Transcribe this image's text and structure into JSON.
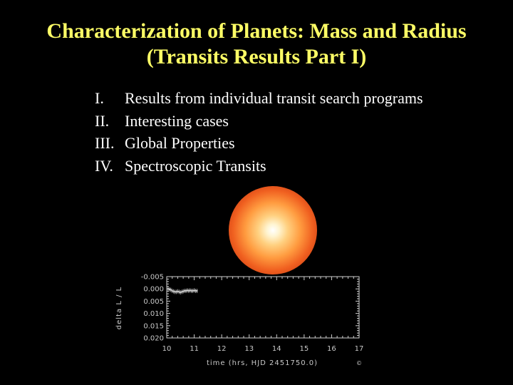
{
  "slide": {
    "title_line1": "Characterization of Planets: Mass and Radius",
    "title_line2": "(Transits Results Part I)",
    "outline": [
      {
        "num": "I.",
        "text": "Results from individual transit search programs"
      },
      {
        "num": "II.",
        "text": "Interesting cases"
      },
      {
        "num": "III.",
        "text": "Global Properties"
      },
      {
        "num": "IV.",
        "text": "Spectroscopic Transits"
      }
    ],
    "colors": {
      "background": "#000000",
      "title": "#ffff66",
      "text": "#ffffff",
      "plot_ink": "#cfcfcf"
    }
  },
  "chart_data": {
    "type": "scatter",
    "xlabel": "time (hrs, HJD 2451750.0)",
    "ylabel": "delta L / L",
    "x_ticks": [
      "10",
      "11",
      "12",
      "13",
      "14",
      "15",
      "16",
      "17"
    ],
    "y_ticks": [
      "-0.005",
      "0.000",
      "0.005",
      "0.010",
      "0.015",
      "0.020"
    ],
    "xlim": [
      10,
      17
    ],
    "ylim": [
      -0.005,
      0.02
    ],
    "y_inverted": true,
    "corner_mark": "©",
    "x": [
      10.05,
      10.1,
      10.15,
      10.2,
      10.25,
      10.3,
      10.35,
      10.4,
      10.45,
      10.5,
      10.55,
      10.6,
      10.65,
      10.7,
      10.75,
      10.8,
      10.85,
      10.9,
      10.95,
      11.0,
      11.05,
      11.1
    ],
    "y": [
      0.0,
      0.0002,
      0.0004,
      0.0008,
      0.001,
      0.0012,
      0.0012,
      0.001,
      0.0012,
      0.0014,
      0.0012,
      0.001,
      0.0008,
      0.0008,
      0.0006,
      0.0008,
      0.0006,
      0.0008,
      0.0008,
      0.0006,
      0.0008,
      0.0008
    ]
  }
}
